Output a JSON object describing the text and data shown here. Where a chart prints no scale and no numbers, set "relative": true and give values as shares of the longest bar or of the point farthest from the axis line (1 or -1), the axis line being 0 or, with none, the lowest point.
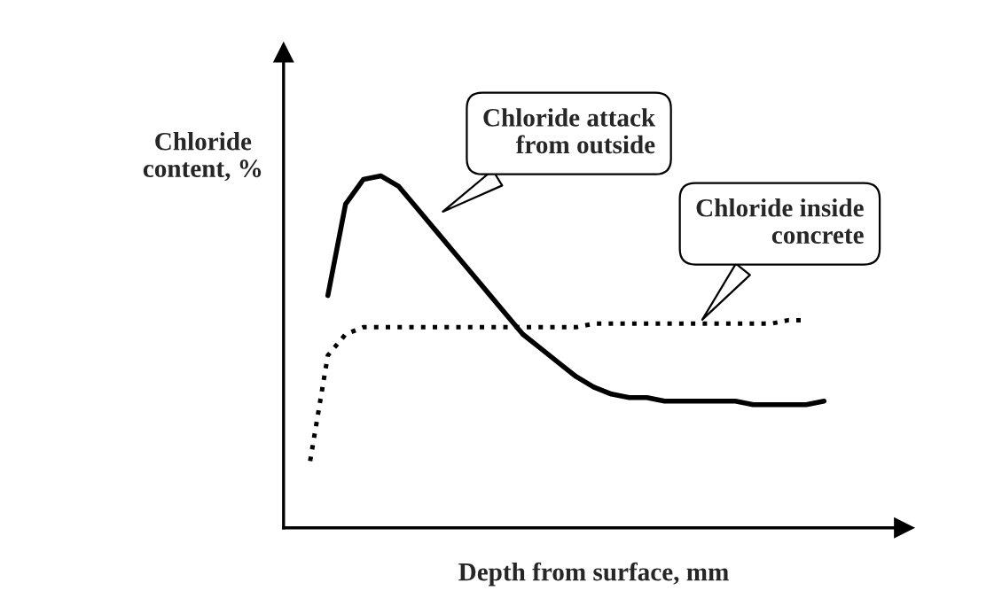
{
  "chart_data": {
    "type": "line",
    "relative": true,
    "xlabel": "Depth from surface, mm",
    "ylabel": "Chloride\ncontent, %",
    "tick_labels": false,
    "legend": false,
    "marker": "none",
    "categories": [
      null,
      null,
      null,
      null,
      null,
      null,
      null,
      null,
      null,
      null,
      null,
      null,
      null,
      null,
      null,
      null,
      null,
      null,
      null,
      null,
      null,
      null,
      null,
      null,
      null,
      null,
      null,
      null,
      null,
      null,
      null
    ],
    "series": [
      {
        "color": "#000000",
        "line_style": "solid",
        "values": [
          null,
          0.66,
          0.92,
          0.99,
          1.0,
          0.97,
          0.91,
          0.85,
          0.79,
          0.73,
          0.67,
          0.61,
          0.55,
          0.51,
          0.47,
          0.43,
          0.4,
          0.38,
          0.37,
          0.37,
          0.36,
          0.36,
          0.36,
          0.36,
          0.36,
          0.35,
          0.35,
          0.35,
          0.35,
          0.36,
          null
        ]
      },
      {
        "color": "#000000",
        "line_style": "dotted",
        "values": [
          0.19,
          0.49,
          0.55,
          0.57,
          0.57,
          0.57,
          0.57,
          0.57,
          0.57,
          0.57,
          0.57,
          0.57,
          0.57,
          0.57,
          0.57,
          0.57,
          0.58,
          0.58,
          0.58,
          0.58,
          0.58,
          0.58,
          0.58,
          0.58,
          0.58,
          0.58,
          0.58,
          0.59,
          0.59,
          null,
          null
        ]
      }
    ],
    "annotations": [
      "Chloride attack\nfrom outside",
      "Chloride inside\nconcrete"
    ]
  }
}
